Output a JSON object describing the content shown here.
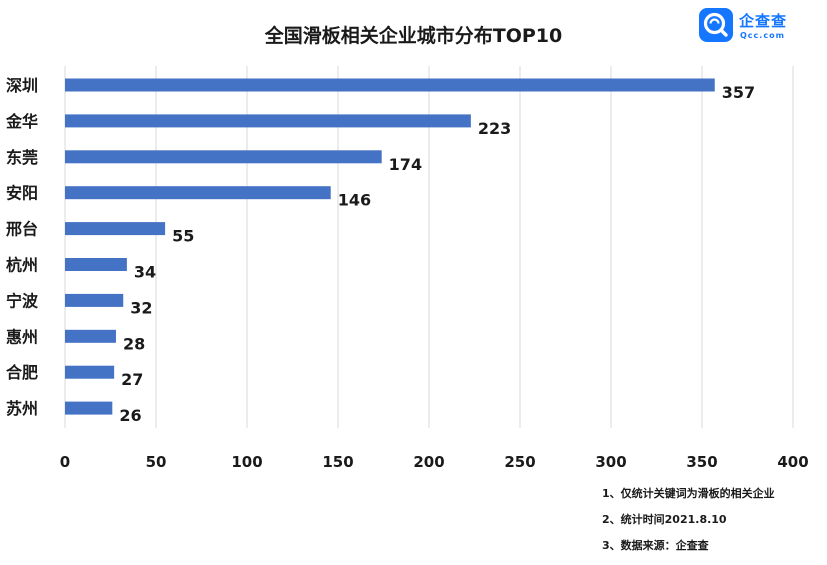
{
  "chart_data": {
    "type": "bar",
    "orientation": "horizontal",
    "title": "全国滑板相关企业城市分布TOP10",
    "categories": [
      "深圳",
      "金华",
      "东莞",
      "安阳",
      "邢台",
      "杭州",
      "宁波",
      "惠州",
      "合肥",
      "苏州"
    ],
    "values": [
      357,
      223,
      174,
      146,
      55,
      34,
      32,
      28,
      27,
      26
    ],
    "xlim": [
      0,
      400
    ],
    "xticks": [
      "0",
      "50",
      "100",
      "150",
      "200",
      "250",
      "300",
      "350",
      "400"
    ],
    "grid": "vertical",
    "bar_color": "#4472c4",
    "data_labels": true
  },
  "logo": {
    "name_cn": "企查查",
    "name_en": "Qcc.com",
    "color": "#1577ff"
  },
  "notes": [
    "1、仅统计关键词为滑板的相关企业",
    "2、统计时间2021.8.10",
    "3、数据来源：企查查"
  ]
}
